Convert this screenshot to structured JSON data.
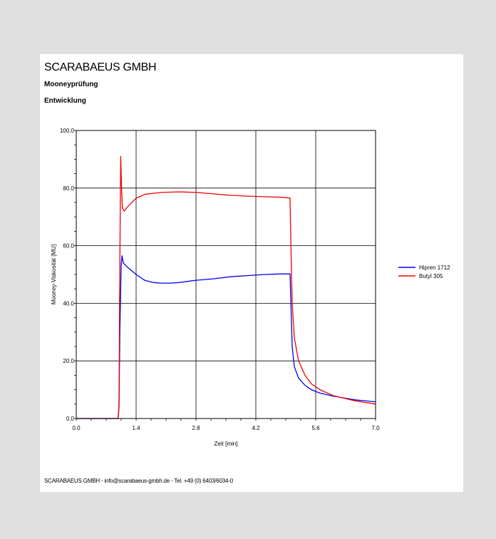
{
  "header": {
    "company": "SCARABAEUS GMBH",
    "subtitle1": "Mooneyprüfung",
    "subtitle2": "Entwicklung"
  },
  "footer": {
    "text": "SCARABAEUS GMBH - info@scarabaeus-gmbh.de - Tel. +49 (0) 6403/6034-0"
  },
  "chart_data": {
    "type": "line",
    "xlabel": "Zeit [min]",
    "ylabel": "Mooney-Viskosität [MU]",
    "xlim": [
      0.0,
      7.0
    ],
    "ylim": [
      0.0,
      100.0
    ],
    "x_ticks": [
      "0.0",
      "1.4",
      "2.8",
      "4.2",
      "5.6",
      "7.0"
    ],
    "y_ticks": [
      "0.0",
      "20.0",
      "40.0",
      "60.0",
      "80.0",
      "100.0"
    ],
    "grid": true,
    "legend_position": "right",
    "series": [
      {
        "name": "Hipren 1712",
        "color": "#0000ee",
        "points": [
          [
            0.0,
            0.0
          ],
          [
            0.98,
            0.0
          ],
          [
            1.0,
            4.0
          ],
          [
            1.02,
            30.0
          ],
          [
            1.05,
            53.0
          ],
          [
            1.07,
            56.5
          ],
          [
            1.1,
            54.0
          ],
          [
            1.2,
            52.5
          ],
          [
            1.4,
            50.0
          ],
          [
            1.6,
            48.0
          ],
          [
            1.8,
            47.2
          ],
          [
            2.0,
            47.0
          ],
          [
            2.2,
            47.0
          ],
          [
            2.4,
            47.2
          ],
          [
            2.6,
            47.6
          ],
          [
            2.8,
            48.0
          ],
          [
            3.2,
            48.5
          ],
          [
            3.6,
            49.2
          ],
          [
            4.0,
            49.6
          ],
          [
            4.4,
            50.0
          ],
          [
            4.8,
            50.2
          ],
          [
            5.0,
            50.2
          ],
          [
            5.02,
            40.0
          ],
          [
            5.05,
            25.0
          ],
          [
            5.1,
            18.0
          ],
          [
            5.2,
            14.0
          ],
          [
            5.35,
            11.5
          ],
          [
            5.5,
            10.0
          ],
          [
            5.7,
            8.8
          ],
          [
            6.0,
            7.8
          ],
          [
            6.5,
            6.5
          ],
          [
            7.0,
            5.8
          ]
        ]
      },
      {
        "name": "Butyl 305",
        "color": "#ee0000",
        "points": [
          [
            0.0,
            0.0
          ],
          [
            0.98,
            0.0
          ],
          [
            1.0,
            5.0
          ],
          [
            1.02,
            55.0
          ],
          [
            1.04,
            91.0
          ],
          [
            1.06,
            80.0
          ],
          [
            1.08,
            73.0
          ],
          [
            1.12,
            72.0
          ],
          [
            1.2,
            73.5
          ],
          [
            1.4,
            76.5
          ],
          [
            1.6,
            77.8
          ],
          [
            1.8,
            78.2
          ],
          [
            2.0,
            78.5
          ],
          [
            2.4,
            78.7
          ],
          [
            2.8,
            78.5
          ],
          [
            3.2,
            78.0
          ],
          [
            3.6,
            77.5
          ],
          [
            4.0,
            77.2
          ],
          [
            4.4,
            77.0
          ],
          [
            4.8,
            76.8
          ],
          [
            5.0,
            76.5
          ],
          [
            5.02,
            60.0
          ],
          [
            5.05,
            40.0
          ],
          [
            5.1,
            28.0
          ],
          [
            5.2,
            20.0
          ],
          [
            5.35,
            15.0
          ],
          [
            5.5,
            12.0
          ],
          [
            5.7,
            10.0
          ],
          [
            6.0,
            8.0
          ],
          [
            6.5,
            6.2
          ],
          [
            7.0,
            5.0
          ]
        ]
      }
    ]
  }
}
